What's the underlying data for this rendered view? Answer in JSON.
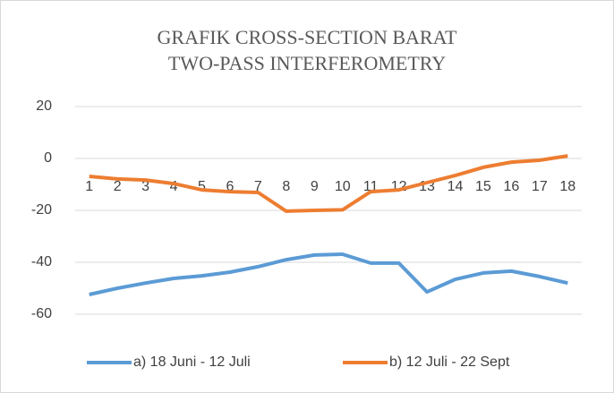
{
  "chart_data": {
    "type": "line",
    "title": [
      "GRAFIK CROSS-SECTION BARAT",
      "TWO-PASS INTERFEROMETRY"
    ],
    "categories": [
      "1",
      "2",
      "3",
      "4",
      "5",
      "6",
      "7",
      "8",
      "9",
      "10",
      "11",
      "12",
      "13",
      "14",
      "15",
      "16",
      "17",
      "18"
    ],
    "series": [
      {
        "name": "a) 18 Juni - 12 Juli",
        "color": "#5b9bd5",
        "values": [
          -52.4,
          -50,
          -48,
          -46.2,
          -45.2,
          -43.8,
          -41.7,
          -39,
          -37.2,
          -36.9,
          -40.3,
          -40.3,
          -51.4,
          -46.6,
          -44.1,
          -43.4,
          -45.5,
          -48
        ]
      },
      {
        "name": "b) 12 Juli - 22 Sept",
        "color": "#ed7d31",
        "values": [
          -6.9,
          -7.9,
          -8.3,
          -9.7,
          -12.1,
          -12.8,
          -13.1,
          -20.3,
          -20,
          -19.8,
          -12.8,
          -12.1,
          -9.3,
          -6.6,
          -3.4,
          -1.4,
          -0.7,
          1
        ]
      }
    ],
    "ylim": [
      -60,
      20
    ],
    "yticks": [
      -60,
      -40,
      -20,
      0,
      20
    ],
    "grid": true,
    "legend": "bottom"
  }
}
